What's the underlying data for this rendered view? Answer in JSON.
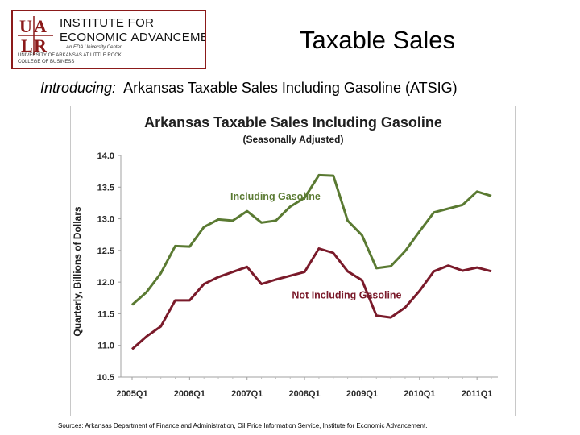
{
  "logo": {
    "mark_text": "UALR",
    "line1": "INSTITUTE FOR",
    "line2": "ECONOMIC ADVANCEMENT",
    "small1": "An EDA University Center",
    "small2": "UNIVERSITY OF ARKANSAS AT LITTLE ROCK",
    "small3": "COLLEGE OF BUSINESS",
    "color": "#8b1a1a"
  },
  "header": {
    "title": "Taxable Sales"
  },
  "intro": {
    "lead": "Introducing:",
    "text": "Arkansas Taxable Sales Including Gasoline (ATSIG)"
  },
  "chart_data": {
    "type": "line",
    "title": "Arkansas Taxable Sales Including Gasoline",
    "subtitle": "(Seasonally Adjusted)",
    "ylabel": "Quarterly, Billions of Dollars",
    "xlabel": "",
    "ylim": [
      10.5,
      14.0
    ],
    "yticks": [
      "10.5",
      "11.0",
      "11.5",
      "12.0",
      "12.5",
      "13.0",
      "13.5",
      "14.0"
    ],
    "xtick_labels": [
      "2005Q1",
      "2006Q1",
      "2007Q1",
      "2008Q1",
      "2009Q1",
      "2010Q1",
      "2011Q1"
    ],
    "grid": false,
    "x": [
      "2005Q1",
      "2005Q2",
      "2005Q3",
      "2005Q4",
      "2006Q1",
      "2006Q2",
      "2006Q3",
      "2006Q4",
      "2007Q1",
      "2007Q2",
      "2007Q3",
      "2007Q4",
      "2008Q1",
      "2008Q2",
      "2008Q3",
      "2008Q4",
      "2009Q1",
      "2009Q2",
      "2009Q3",
      "2009Q4",
      "2010Q1",
      "2010Q2",
      "2010Q3",
      "2010Q4",
      "2011Q1",
      "2011Q2"
    ],
    "series": [
      {
        "name": "Including Gasoline",
        "color": "#5a7a32",
        "values": [
          11.64,
          11.84,
          12.14,
          12.57,
          12.56,
          12.87,
          12.99,
          12.97,
          13.12,
          12.94,
          12.97,
          13.19,
          13.33,
          13.69,
          13.68,
          12.97,
          12.74,
          12.22,
          12.25,
          12.49,
          12.8,
          13.1,
          13.16,
          13.22,
          13.43,
          13.36
        ]
      },
      {
        "name": "Not Including Gasoline",
        "color": "#7a1a2a",
        "values": [
          10.94,
          11.14,
          11.3,
          11.71,
          11.71,
          11.97,
          12.08,
          12.16,
          12.24,
          11.97,
          12.04,
          12.1,
          12.16,
          12.53,
          12.46,
          12.17,
          12.03,
          11.47,
          11.44,
          11.6,
          11.86,
          12.17,
          12.26,
          12.18,
          12.23,
          12.17
        ]
      }
    ]
  },
  "sources": "Sources:  Arkansas Department of Finance and Administration, Oil Price Information Service, Institute for Economic Advancement."
}
